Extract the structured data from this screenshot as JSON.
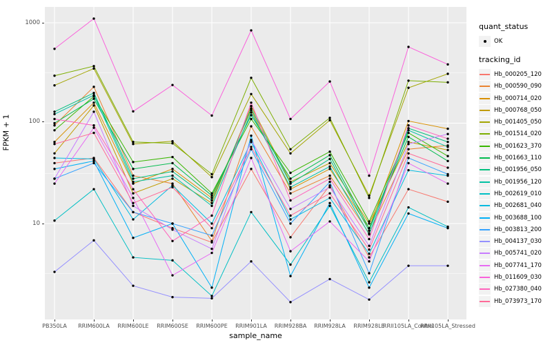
{
  "figure": {
    "y_tick_labels": [
      "1000",
      "100",
      "10"
    ],
    "panel_background": "#ebebeb",
    "grid_color": "#ffffff",
    "point_color": "#000000",
    "tick_color": "#333333",
    "tick_label_color": "#4d4d4d"
  },
  "legend": {
    "quant_status_title": "quant_status",
    "quant_status_ok_label": "OK",
    "tracking_title": "tracking_id"
  },
  "chart_data": {
    "type": "line",
    "title": "",
    "xlabel": "sample_name",
    "ylabel": "FPKM + 1",
    "y_scale": "log10",
    "y_ticks": [
      10,
      100,
      1000
    ],
    "y_minor_ticks": [
      3.1623,
      31.623,
      316.23
    ],
    "ylim": [
      1.1,
      1450
    ],
    "legend_position": "right",
    "grid": "white major and minor gridlines on gray panel",
    "x": [
      "PB350LA",
      "RRIM600LA",
      "RRIM600LE",
      "RRIM600SE",
      "RRIM600PE",
      "RRIM901LA",
      "RRIM928BA",
      "RRIM928LA",
      "RRIM928LE",
      "RRII105LA_Control",
      "RRII105LA_Stressed"
    ],
    "quant_status": "OK",
    "series": [
      {
        "name": "Hb_000205_120",
        "color": "#F8766D",
        "values": [
          40,
          45,
          13,
          9,
          6.5,
          35,
          7.3,
          24,
          4.6,
          22,
          16.5
        ]
      },
      {
        "name": "Hb_000590_090",
        "color": "#EA8331",
        "values": [
          95,
          230,
          30,
          25,
          6.7,
          93,
          20,
          30,
          8,
          55,
          60
        ]
      },
      {
        "name": "Hb_000714_020",
        "color": "#D89000",
        "values": [
          65,
          160,
          25,
          35,
          18,
          135,
          22,
          35,
          9,
          105,
          88
        ]
      },
      {
        "name": "Hb_000768_050",
        "color": "#C09B00",
        "values": [
          50,
          150,
          20,
          28,
          16,
          148,
          26,
          40,
          10,
          65,
          54
        ]
      },
      {
        "name": "Hb_001405_050",
        "color": "#A3A500",
        "values": [
          238,
          350,
          62,
          66,
          29,
          195,
          50,
          107,
          19,
          225,
          310
        ]
      },
      {
        "name": "Hb_001514_020",
        "color": "#7CAE00",
        "values": [
          297,
          370,
          65,
          63,
          31,
          283,
          55,
          113,
          18,
          265,
          255
        ]
      },
      {
        "name": "Hb_001623_370",
        "color": "#39B600",
        "values": [
          85,
          185,
          41,
          46,
          20,
          110,
          32,
          52,
          10.5,
          80,
          47
        ]
      },
      {
        "name": "Hb_001663_110",
        "color": "#00BB4E",
        "values": [
          100,
          175,
          35,
          40,
          19,
          120,
          28,
          48,
          9,
          73,
          42
        ]
      },
      {
        "name": "Hb_001956_050",
        "color": "#00BF7D",
        "values": [
          130,
          200,
          28,
          33,
          17,
          140,
          25,
          44,
          8.5,
          89,
          65
        ]
      },
      {
        "name": "Hb_001956_120",
        "color": "#00C1A3",
        "values": [
          123,
          190,
          26,
          30,
          15,
          128,
          23,
          37,
          7.8,
          85,
          58
        ]
      },
      {
        "name": "Hb_002619_010",
        "color": "#00BFC4",
        "values": [
          10.7,
          22,
          4.6,
          4.3,
          1.9,
          13,
          3.9,
          15,
          2.6,
          14.5,
          9.3
        ]
      },
      {
        "name": "Hb_002681_040",
        "color": "#00BAE0",
        "values": [
          45,
          44,
          11,
          24,
          10,
          65,
          11,
          18,
          5,
          34,
          30
        ]
      },
      {
        "name": "Hb_003688_100",
        "color": "#00B0F6",
        "values": [
          35,
          42,
          7.2,
          10,
          2.3,
          75,
          3,
          16,
          2.3,
          12.6,
          9
        ]
      },
      {
        "name": "Hb_003813_200",
        "color": "#35A2FF",
        "values": [
          28,
          40,
          13,
          10,
          7.6,
          55,
          10,
          26,
          3.2,
          45,
          31
        ]
      },
      {
        "name": "Hb_004137_030",
        "color": "#9590FF",
        "values": [
          3.3,
          6.8,
          2.4,
          1.85,
          1.8,
          4.2,
          1.65,
          2.8,
          1.75,
          3.8,
          3.8
        ]
      },
      {
        "name": "Hb_005741_020",
        "color": "#C77CFF",
        "values": [
          28,
          130,
          15,
          8.7,
          5.6,
          68,
          14,
          23,
          6,
          62,
          78
        ]
      },
      {
        "name": "Hb_007741_170",
        "color": "#E76BF3",
        "values": [
          25,
          90,
          18,
          3.05,
          5.1,
          45,
          5.3,
          10.5,
          4.2,
          40,
          25
        ]
      },
      {
        "name": "Hb_011609_030",
        "color": "#FA62DB",
        "values": [
          550,
          1100,
          131,
          240,
          119,
          840,
          110,
          260,
          30,
          575,
          385
        ]
      },
      {
        "name": "Hb_027380_040",
        "color": "#FF62BC",
        "values": [
          110,
          95,
          22,
          6.7,
          12,
          160,
          17,
          28,
          7,
          95,
          70
        ]
      },
      {
        "name": "Hb_073973_170",
        "color": "#FF6A98",
        "values": [
          62,
          80,
          16,
          23,
          9,
          58,
          12,
          20,
          5.5,
          50,
          36
        ]
      }
    ]
  }
}
